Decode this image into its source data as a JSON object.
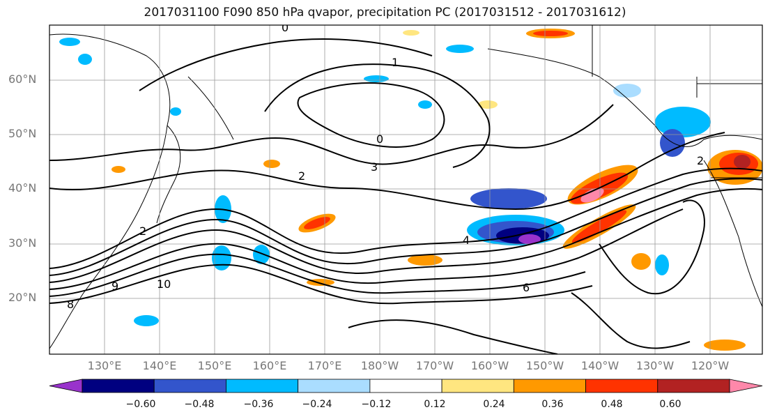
{
  "title": "2017031100 F090 850 hPa qvapor, precipitation PC (2017031512 - 2017031612)",
  "lat_labels": [
    "60°N",
    "50°N",
    "40°N",
    "30°N",
    "20°N"
  ],
  "lon_labels": [
    "130°E",
    "140°E",
    "150°E",
    "160°E",
    "170°E",
    "180°W",
    "170°W",
    "160°W",
    "150°W",
    "140°W",
    "130°W",
    "120°W"
  ],
  "contour_labels": [
    "0",
    "1",
    "0",
    "2",
    "3",
    "2",
    "4",
    "6",
    "8",
    "9",
    "10",
    "2"
  ],
  "colorbar": {
    "tick_labels": [
      "−0.60",
      "−0.48",
      "−0.36",
      "−0.24",
      "−0.12",
      "0.12",
      "0.24",
      "0.36",
      "0.48",
      "0.60"
    ],
    "colors": [
      "#9933cc",
      "#000080",
      "#3355cc",
      "#00bbff",
      "#aaddff",
      "#ffffff",
      "#ffe680",
      "#ff9900",
      "#ff3300",
      "#b22222",
      "#ff88aa"
    ]
  }
}
